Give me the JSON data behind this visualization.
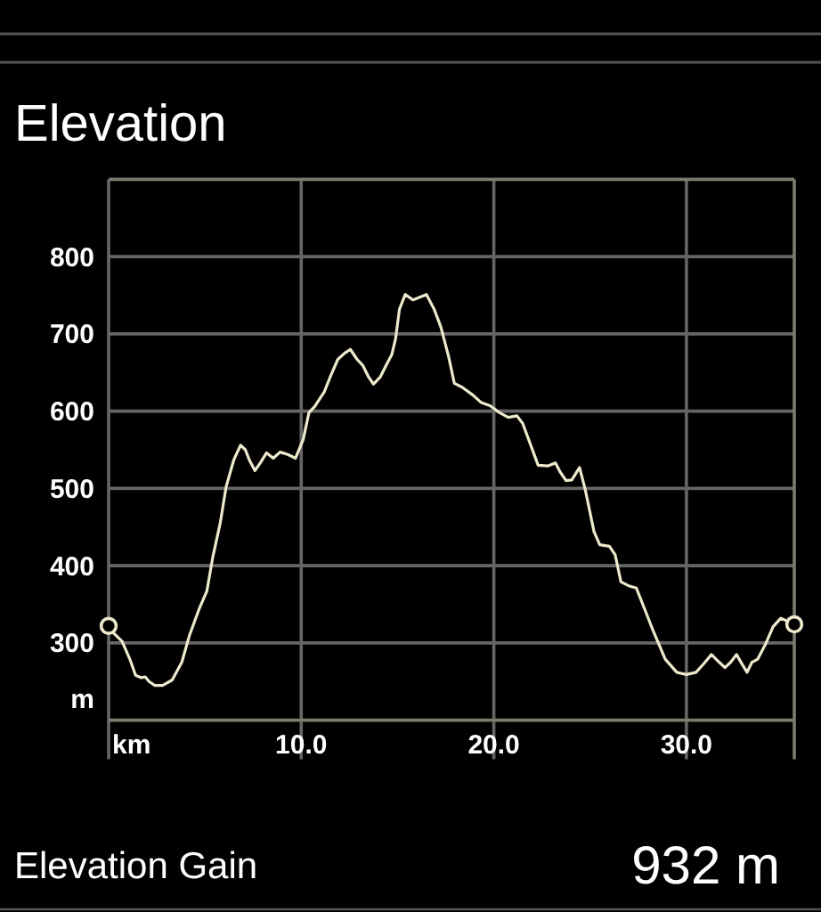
{
  "chart_data": {
    "type": "line",
    "title": "Elevation",
    "xlabel": "km",
    "ylabel": "m",
    "xlim": [
      0,
      35.6
    ],
    "ylim": [
      200,
      900
    ],
    "xticks": [
      {
        "value": 0,
        "label": null
      },
      {
        "value": 10,
        "label": "10.0"
      },
      {
        "value": 20,
        "label": "20.0"
      },
      {
        "value": 30,
        "label": "30.0"
      }
    ],
    "yticks": [
      300,
      400,
      500,
      600,
      700,
      800
    ],
    "grid": true,
    "series": [
      {
        "color": "#ede9cc",
        "x": [
          0,
          0.2,
          0.7,
          1.1,
          1.4,
          1.7,
          1.9,
          2.1,
          2.4,
          2.8,
          3.3,
          3.8,
          4.2,
          4.7,
          5.1,
          5.4,
          5.8,
          6.1,
          6.5,
          6.85,
          7.1,
          7.3,
          7.6,
          7.9,
          8.2,
          8.55,
          8.9,
          9.3,
          9.7,
          10.1,
          10.4,
          10.7,
          11.2,
          11.5,
          11.9,
          12.25,
          12.55,
          12.9,
          13.2,
          13.5,
          13.75,
          14.1,
          14.4,
          14.7,
          14.9,
          15.1,
          15.4,
          15.8,
          16.5,
          16.9,
          17.25,
          17.65,
          17.95,
          18.35,
          18.9,
          19.35,
          19.8,
          20.3,
          20.75,
          21.2,
          21.5,
          21.9,
          22.3,
          22.8,
          23.2,
          23.45,
          23.75,
          24.05,
          24.45,
          24.75,
          25.2,
          25.5,
          26.0,
          26.3,
          26.6,
          27.0,
          27.4,
          27.7,
          28.3,
          28.9,
          29.5,
          30.0,
          30.5,
          30.9,
          31.3,
          31.7,
          32.0,
          32.3,
          32.6,
          32.9,
          33.15,
          33.4,
          33.7,
          34.1,
          34.5,
          34.9,
          35.6
        ],
        "values": [
          322,
          314,
          302,
          279,
          258,
          255,
          256,
          250,
          245,
          245,
          252,
          275,
          310,
          344,
          367,
          410,
          456,
          502,
          537,
          556,
          550,
          537,
          523,
          534,
          546,
          539,
          547,
          544,
          539,
          563,
          598,
          606,
          625,
          644,
          667,
          675,
          680,
          667,
          659,
          644,
          635,
          644,
          659,
          673,
          694,
          732,
          751,
          744,
          751,
          732,
          709,
          671,
          636,
          631,
          621,
          611,
          607,
          598,
          592,
          594,
          584,
          557,
          530,
          529,
          533,
          521,
          510,
          511,
          527,
          498,
          444,
          427,
          425,
          414,
          379,
          374,
          371,
          352,
          314,
          279,
          262,
          259,
          262,
          273,
          285,
          275,
          268,
          275,
          285,
          272,
          262,
          275,
          279,
          298,
          321,
          332,
          324
        ]
      },
      {
        "type": "scatter",
        "marker": "circle",
        "color": "#ede9cc",
        "x": [
          0,
          35.6
        ],
        "values": [
          322,
          324
        ]
      }
    ],
    "annotations": [
      "Elevation Gain",
      "932 m"
    ]
  }
}
